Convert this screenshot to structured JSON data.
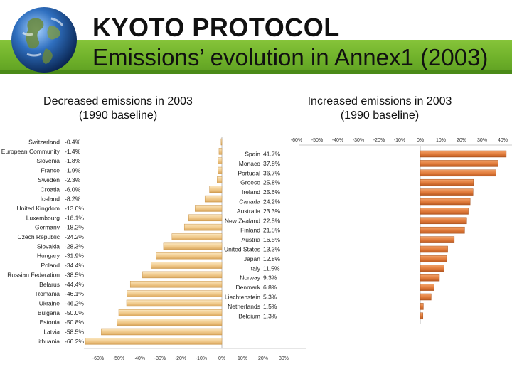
{
  "slide": {
    "title": "KYOTO PROTOCOL",
    "subtitle": "Emissions’ evolution in Annex1 (2003)"
  },
  "colors": {
    "green_band": "#6fb12a",
    "bar_light": "#f3d39a",
    "bar_dark": "#d9963c",
    "bar_orange": "#e07a3a"
  },
  "chart_data": [
    {
      "type": "bar",
      "orientation": "horizontal",
      "title": "Decreased emissions in 2003",
      "subtitle": "(1990 baseline)",
      "categories": [
        "Switzerland",
        "European Community",
        "Slovenia",
        "France",
        "Sweden",
        "Croatia",
        "Iceland",
        "United Kingdom",
        "Luxembourg",
        "Germany",
        "Czech Republic",
        "Slovakia",
        "Hungary",
        "Poland",
        "Russian Federation",
        "Belarus",
        "Romania",
        "Ukraine",
        "Bulgaria",
        "Estonia",
        "Latvia",
        "Lithuania"
      ],
      "value_labels": [
        "-0.4%",
        "-1.4%",
        "-1.8%",
        "-1.9%",
        "-2.3%",
        "-6.0%",
        "-8.2%",
        "-13.0%",
        "-16.1%",
        "-18.2%",
        "-24.2%",
        "-28.3%",
        "-31.9%",
        "-34.4%",
        "-38.5%",
        "-44.4%",
        "-46.1%",
        "-46.2%",
        "-50.0%",
        "-50.8%",
        "-58.5%",
        "-66.2%"
      ],
      "values": [
        -0.4,
        -1.4,
        -1.8,
        -1.9,
        -2.3,
        -6.0,
        -8.2,
        -13.0,
        -16.1,
        -18.2,
        -24.2,
        -28.3,
        -31.9,
        -34.4,
        -38.5,
        -44.4,
        -46.1,
        -46.2,
        -50.0,
        -50.8,
        -58.5,
        -66.2
      ],
      "x_ticks": [
        "-60%",
        "-50%",
        "-40%",
        "-30%",
        "-20%",
        "-10%",
        "0%",
        "10%",
        "20%",
        "30%",
        "40%"
      ],
      "xlim": [
        -60,
        40
      ]
    },
    {
      "type": "bar",
      "orientation": "horizontal",
      "title": "Increased emissions in 2003",
      "subtitle": "(1990 baseline)",
      "categories": [
        "Spain",
        "Monaco",
        "Portugal",
        "Greece",
        "Ireland",
        "Canada",
        "Australia",
        "New Zealand",
        "Finland",
        "Austria",
        "United States",
        "Japan",
        "Italy",
        "Norway",
        "Denmark",
        "Liechtenstein",
        "Netherlands",
        "Belgium"
      ],
      "value_labels": [
        "41.7%",
        "37.8%",
        "36.7%",
        "25.8%",
        "25.6%",
        "24.2%",
        "23.3%",
        "22.5%",
        "21.5%",
        "16.5%",
        "13.3%",
        "12.8%",
        "11.5%",
        "9.3%",
        "6.8%",
        "5.3%",
        "1.5%",
        "1.3%"
      ],
      "values": [
        41.7,
        37.8,
        36.7,
        25.8,
        25.6,
        24.2,
        23.3,
        22.5,
        21.5,
        16.5,
        13.3,
        12.8,
        11.5,
        9.3,
        6.8,
        5.3,
        1.5,
        1.3
      ],
      "x_ticks": [
        "-60%",
        "-50%",
        "-40%",
        "-30%",
        "-20%",
        "-10%",
        "0%",
        "10%",
        "20%",
        "30%",
        "40%"
      ],
      "xlim": [
        -60,
        40
      ]
    }
  ]
}
